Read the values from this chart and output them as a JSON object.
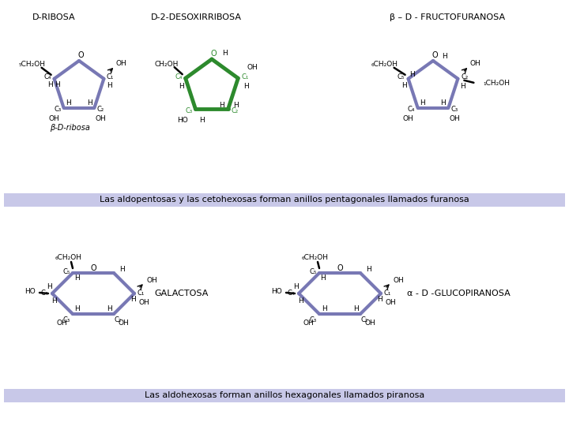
{
  "bg_color": "#ffffff",
  "banner1_color": "#c8c8e8",
  "banner2_color": "#c8c8e8",
  "banner1_text": "Las aldopentosas y las cetohexosas forman anillos pentagonales llamados furanosa",
  "banner2_text": "Las aldohexosas forman anillos hexagonales llamados piranosa",
  "title1": "D-RIBOSA",
  "title2": "D-2-DESOXIRRIBOSA",
  "title3": "β – D - FRUCTOFURANOSA",
  "label_galactosa": "GALACTOSA",
  "label_gluco": "α - D -GLUCOPIRANOSA",
  "bond_color_blue": "#7878b4",
  "bond_color_green": "#2d8a2d",
  "text_color": "#000000"
}
